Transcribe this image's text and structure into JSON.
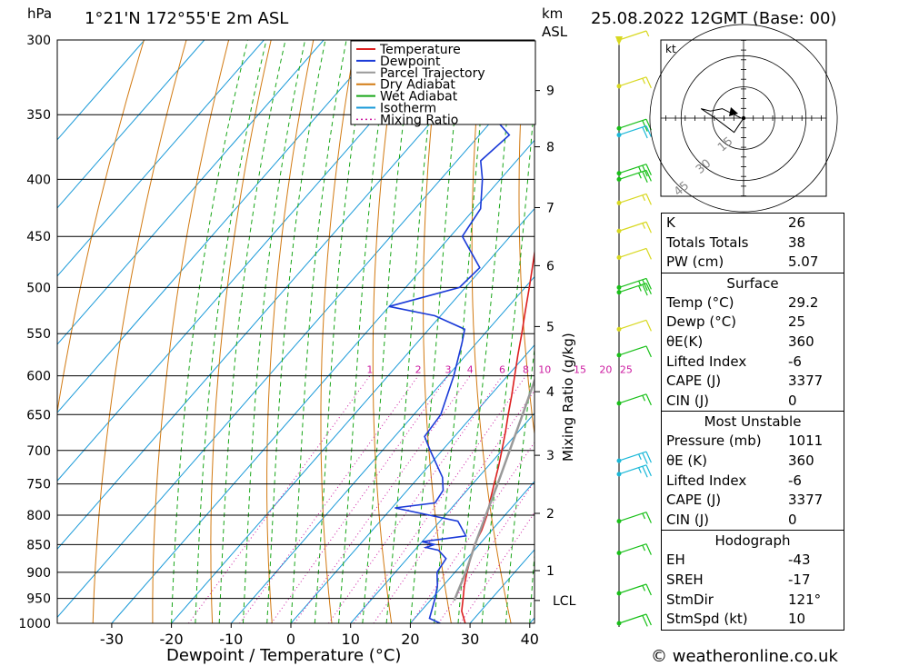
{
  "header": {
    "hpa_label": "hPa",
    "location": "1°21'N  172°55'E  2m  ASL",
    "km_label": "km",
    "asl_label": "ASL",
    "datetime": "25.08.2022  12GMT  (Base: 00)"
  },
  "footer": {
    "copyright": "© weatheronline.co.uk"
  },
  "chart_data": {
    "type": "skew-t",
    "xlabel": "Dewpoint / Temperature (°C)",
    "ylabel_left": "hPa",
    "mixing_ratio_axis_label": "Mixing Ratio (g/kg)",
    "x_ticks": [
      -30,
      -20,
      -10,
      0,
      10,
      20,
      30,
      40
    ],
    "xlim": [
      -40,
      40
    ],
    "pressure_levels": [
      300,
      350,
      400,
      450,
      500,
      550,
      600,
      650,
      700,
      750,
      800,
      850,
      900,
      950,
      1000
    ],
    "ylim": [
      300,
      1000
    ],
    "height_km_ticks": [
      {
        "label": "9",
        "p": 333
      },
      {
        "label": "8",
        "p": 374
      },
      {
        "label": "7",
        "p": 424
      },
      {
        "label": "6",
        "p": 478
      },
      {
        "label": "5",
        "p": 542
      },
      {
        "label": "4",
        "p": 620
      },
      {
        "label": "3",
        "p": 707
      },
      {
        "label": "2",
        "p": 797
      },
      {
        "label": "1",
        "p": 897
      },
      {
        "label": "LCL",
        "p": 954
      }
    ],
    "mixing_ratio_labels": [
      "1",
      "2",
      "3",
      "4",
      "6",
      "8",
      "10",
      "15",
      "20",
      "25"
    ],
    "legend": [
      {
        "name": "Temperature",
        "color": "#dd2020"
      },
      {
        "name": "Dewpoint",
        "color": "#1a3ad8"
      },
      {
        "name": "Parcel Trajectory",
        "color": "#999999"
      },
      {
        "name": "Dry Adiabat",
        "color": "#d27a12"
      },
      {
        "name": "Wet Adiabat",
        "color": "#19a619"
      },
      {
        "name": "Isotherm",
        "color": "#1a9ad8"
      },
      {
        "name": "Mixing Ratio",
        "color": "#cc1aa0"
      }
    ],
    "series": [
      {
        "name": "Temperature",
        "points": [
          [
            1000,
            29.2
          ],
          [
            975,
            26.8
          ],
          [
            950,
            25.2
          ],
          [
            925,
            23.5
          ],
          [
            900,
            22.0
          ],
          [
            875,
            20.6
          ],
          [
            850,
            19.2
          ],
          [
            825,
            18.3
          ],
          [
            800,
            17.0
          ],
          [
            775,
            15.3
          ],
          [
            750,
            13.6
          ],
          [
            725,
            11.9
          ],
          [
            700,
            10.0
          ],
          [
            675,
            8.0
          ],
          [
            650,
            5.8
          ],
          [
            625,
            3.6
          ],
          [
            600,
            1.2
          ],
          [
            575,
            -1.3
          ],
          [
            550,
            -3.8
          ],
          [
            525,
            -6.5
          ],
          [
            500,
            -9.3
          ],
          [
            475,
            -12.3
          ],
          [
            450,
            -15.5
          ],
          [
            425,
            -19.0
          ],
          [
            400,
            -22.7
          ],
          [
            375,
            -26.6
          ],
          [
            350,
            -31.0
          ],
          [
            325,
            -35.6
          ],
          [
            300,
            -40.8
          ]
        ]
      },
      {
        "name": "Dewpoint",
        "points": [
          [
            1000,
            25.0
          ],
          [
            990,
            22.5
          ],
          [
            950,
            20.5
          ],
          [
            925,
            19.0
          ],
          [
            900,
            17.0
          ],
          [
            875,
            16.5
          ],
          [
            860,
            14.0
          ],
          [
            855,
            11.5
          ],
          [
            850,
            12.5
          ],
          [
            845,
            10.0
          ],
          [
            835,
            16.5
          ],
          [
            810,
            13.0
          ],
          [
            788,
            0.5
          ],
          [
            780,
            6.5
          ],
          [
            760,
            6.0
          ],
          [
            740,
            4.0
          ],
          [
            700,
            -2.0
          ],
          [
            680,
            -5.0
          ],
          [
            650,
            -5.5
          ],
          [
            600,
            -9.0
          ],
          [
            560,
            -12.5
          ],
          [
            545,
            -14.0
          ],
          [
            530,
            -21.0
          ],
          [
            520,
            -30.0
          ],
          [
            500,
            -21.0
          ],
          [
            480,
            -20.5
          ],
          [
            450,
            -28.0
          ],
          [
            425,
            -29.0
          ],
          [
            400,
            -33.0
          ],
          [
            385,
            -36.0
          ],
          [
            365,
            -35.0
          ],
          [
            350,
            -41.0
          ],
          [
            330,
            -44.0
          ],
          [
            300,
            -51.0
          ]
        ]
      },
      {
        "name": "Parcel Trajectory",
        "points": [
          [
            954,
            24.0
          ],
          [
            900,
            21.8
          ],
          [
            850,
            19.3
          ],
          [
            800,
            16.8
          ],
          [
            750,
            14.2
          ],
          [
            700,
            11.3
          ],
          [
            650,
            8.2
          ],
          [
            600,
            4.8
          ],
          [
            550,
            1.0
          ],
          [
            500,
            -3.4
          ],
          [
            450,
            -8.4
          ],
          [
            400,
            -14.5
          ],
          [
            350,
            -21.8
          ],
          [
            300,
            -30.6
          ]
        ]
      }
    ],
    "hodograph": {
      "unit_label": "kt",
      "ring_labels": [
        "15",
        "30",
        "45"
      ],
      "trace_kt": [
        [
          -1,
          0
        ],
        [
          -5,
          2
        ],
        [
          -9,
          4
        ],
        [
          -14,
          3
        ],
        [
          -18,
          4
        ],
        [
          -12,
          0
        ],
        [
          -8,
          -3
        ],
        [
          -4,
          -6
        ],
        [
          -2,
          -3
        ],
        [
          0,
          0
        ]
      ]
    },
    "indices": [
      {
        "label": "K",
        "value": "26"
      },
      {
        "label": "Totals Totals",
        "value": "38"
      },
      {
        "label": "PW (cm)",
        "value": "5.07"
      }
    ],
    "surface": {
      "title": "Surface",
      "rows": [
        {
          "label": "Temp (°C)",
          "value": "29.2"
        },
        {
          "label": "Dewp (°C)",
          "value": "25"
        },
        {
          "label": "θE(K)",
          "value": "360"
        },
        {
          "label": "Lifted Index",
          "value": "-6"
        },
        {
          "label": "CAPE (J)",
          "value": "3377"
        },
        {
          "label": "CIN (J)",
          "value": "0"
        }
      ]
    },
    "most_unstable": {
      "title": "Most Unstable",
      "rows": [
        {
          "label": "Pressure (mb)",
          "value": "1011"
        },
        {
          "label": "θE (K)",
          "value": "360"
        },
        {
          "label": "Lifted Index",
          "value": "-6"
        },
        {
          "label": "CAPE (J)",
          "value": "3377"
        },
        {
          "label": "CIN (J)",
          "value": "0"
        }
      ]
    },
    "hodograph_stats": {
      "title": "Hodograph",
      "rows": [
        {
          "label": "EH",
          "value": "-43"
        },
        {
          "label": "SREH",
          "value": "-17"
        },
        {
          "label": "StmDir",
          "value": "121°"
        },
        {
          "label": "StmSpd (kt)",
          "value": "10"
        }
      ]
    },
    "wind_barbs": [
      {
        "p": 300,
        "speed": 5,
        "color": "#d8d820"
      },
      {
        "p": 330,
        "speed": 15,
        "color": "#d8d820"
      },
      {
        "p": 360,
        "speed": 20,
        "color": "#19c019"
      },
      {
        "p": 365,
        "speed": 20,
        "color": "#1ab8d8"
      },
      {
        "p": 395,
        "speed": 25,
        "color": "#19c019"
      },
      {
        "p": 400,
        "speed": 25,
        "color": "#19c019"
      },
      {
        "p": 420,
        "speed": 15,
        "color": "#d8d820"
      },
      {
        "p": 445,
        "speed": 15,
        "color": "#d8d820"
      },
      {
        "p": 470,
        "speed": 10,
        "color": "#d8d820"
      },
      {
        "p": 500,
        "speed": 25,
        "color": "#19c019"
      },
      {
        "p": 505,
        "speed": 25,
        "color": "#19c019"
      },
      {
        "p": 545,
        "speed": 10,
        "color": "#d8d820"
      },
      {
        "p": 575,
        "speed": 10,
        "color": "#19c019"
      },
      {
        "p": 635,
        "speed": 15,
        "color": "#19c019"
      },
      {
        "p": 715,
        "speed": 25,
        "color": "#1ab8d8"
      },
      {
        "p": 735,
        "speed": 25,
        "color": "#1ab8d8"
      },
      {
        "p": 810,
        "speed": 15,
        "color": "#19c019"
      },
      {
        "p": 865,
        "speed": 15,
        "color": "#19c019"
      },
      {
        "p": 940,
        "speed": 15,
        "color": "#19c019"
      },
      {
        "p": 1000,
        "speed": 20,
        "color": "#19c019"
      }
    ]
  }
}
